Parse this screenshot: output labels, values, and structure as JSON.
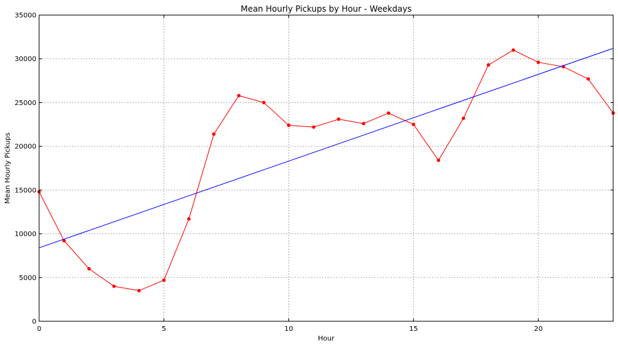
{
  "chart_data": {
    "type": "line",
    "title": "Mean Hourly Pickups by Hour - Weekdays",
    "xlabel": "Hour",
    "ylabel": "Mean Hourly Pickups",
    "xlim": [
      0,
      23
    ],
    "ylim": [
      0,
      35000
    ],
    "xticks": [
      0,
      5,
      10,
      15,
      20
    ],
    "yticks": [
      0,
      5000,
      10000,
      15000,
      20000,
      25000,
      30000,
      35000
    ],
    "grid": true,
    "series": [
      {
        "color": "#ff0000",
        "marker": "dot",
        "x": [
          0,
          1,
          2,
          3,
          4,
          5,
          6,
          7,
          8,
          9,
          10,
          11,
          12,
          13,
          14,
          15,
          16,
          17,
          18,
          19,
          20,
          21,
          22,
          23
        ],
        "values": [
          14800,
          9200,
          6000,
          4000,
          3500,
          4700,
          11700,
          21400,
          25800,
          25000,
          22400,
          22200,
          23100,
          22600,
          23800,
          22500,
          18400,
          23200,
          29300,
          31000,
          29600,
          29100,
          27700,
          23800
        ]
      },
      {
        "color": "#0000ff",
        "x": [
          0,
          23
        ],
        "values": [
          8400,
          31200
        ]
      }
    ]
  }
}
